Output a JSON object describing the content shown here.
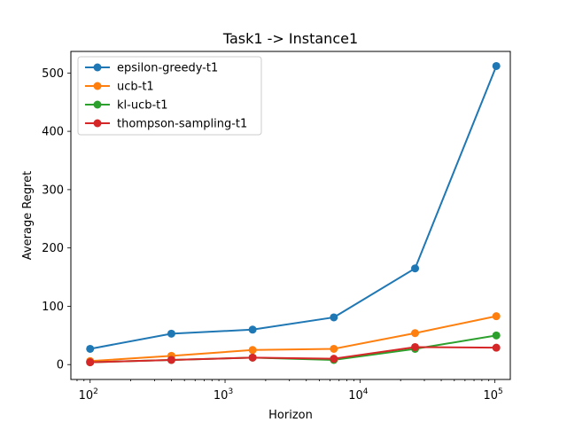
{
  "chart_data": {
    "type": "line",
    "title": "Task1 -> Instance1",
    "xlabel": "Horizon",
    "ylabel": "Average Regret",
    "xscale": "log",
    "x": [
      100,
      400,
      1600,
      6400,
      25600,
      102400
    ],
    "xlim": [
      72,
      130000
    ],
    "ylim": [
      -25.5,
      537
    ],
    "xticks": [
      {
        "value": 100,
        "base": "10",
        "exp": "2"
      },
      {
        "value": 1000,
        "base": "10",
        "exp": "3"
      },
      {
        "value": 10000,
        "base": "10",
        "exp": "4"
      },
      {
        "value": 100000,
        "base": "10",
        "exp": "5"
      }
    ],
    "yticks": [
      0,
      100,
      200,
      300,
      400,
      500
    ],
    "legend_position": "top-left",
    "grid": false,
    "series": [
      {
        "name": "epsilon-greedy-t1",
        "color": "#1f77b4",
        "values": [
          27,
          53,
          60,
          81,
          165,
          512
        ]
      },
      {
        "name": "ucb-t1",
        "color": "#ff7f0e",
        "values": [
          6,
          15,
          25,
          27,
          54,
          83
        ]
      },
      {
        "name": "kl-ucb-t1",
        "color": "#2ca02c",
        "values": [
          4,
          8,
          12,
          8,
          27,
          50
        ]
      },
      {
        "name": "thompson-sampling-t1",
        "color": "#d62728",
        "values": [
          4,
          8,
          12,
          10,
          30,
          29
        ]
      }
    ]
  }
}
